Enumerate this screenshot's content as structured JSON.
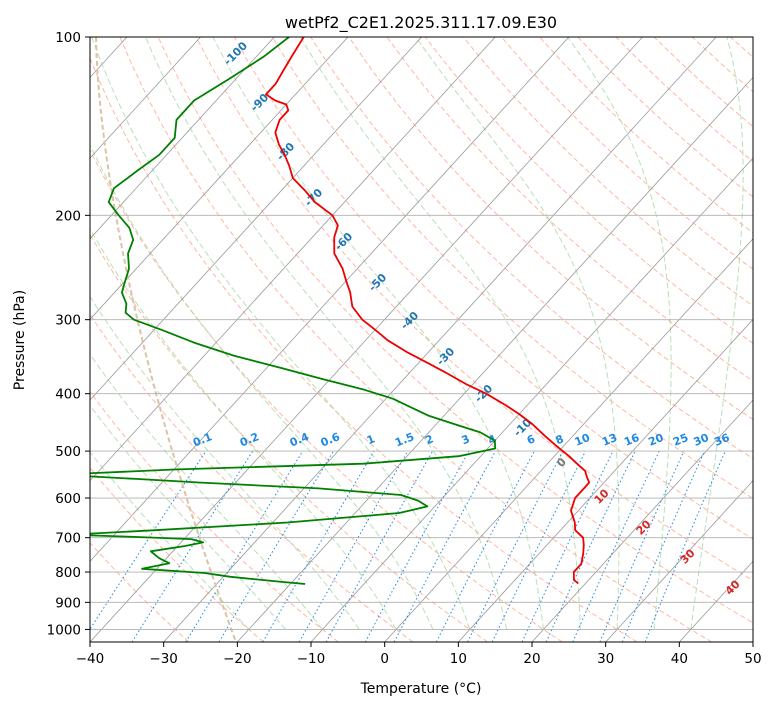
{
  "chart_data": {
    "type": "line",
    "subtype": "skew-t log-p diagram",
    "title": "wetPf2_C2E1.2025.311.17.09.E30",
    "xlabel": "Temperature (°C)",
    "ylabel": "Pressure (hPa)",
    "xlim": [
      -40,
      50
    ],
    "ylim": [
      1050,
      100
    ],
    "yscale": "log",
    "grid": true,
    "x_ticks": [
      -40,
      -30,
      -20,
      -10,
      0,
      10,
      20,
      30,
      40,
      50
    ],
    "x_tick_labels": [
      "−40",
      "−30",
      "−20",
      "−10",
      "0",
      "10",
      "20",
      "30",
      "40",
      "50"
    ],
    "y_ticks": [
      100,
      200,
      300,
      400,
      500,
      600,
      700,
      800,
      900,
      1000
    ],
    "y_tick_labels": [
      "100",
      "200",
      "300",
      "400",
      "500",
      "600",
      "700",
      "800",
      "900",
      "1000"
    ],
    "colors": {
      "temperature": "#ee0000",
      "dewpoint": "#008000",
      "isotherm_label": "#1f77b4",
      "isotherm_label_warm": "#d62728",
      "mixing_ratio": "#1e88e5",
      "dry_adiabat": "#ff9f80",
      "moist_adiabat": "#a6d8a6",
      "skewed_isotherm": "#999999",
      "horizontal_grid": "#b0b0b0",
      "lcl_curve": "#dcc3a6"
    },
    "series": [
      {
        "name": "",
        "key": "temperature",
        "points": [
          [
            -86,
            100
          ],
          [
            -85.5,
            105
          ],
          [
            -85,
            110
          ],
          [
            -84.5,
            115
          ],
          [
            -84,
            120
          ],
          [
            -84,
            125
          ],
          [
            -82,
            128
          ],
          [
            -80,
            130
          ],
          [
            -79,
            133
          ],
          [
            -79,
            138
          ],
          [
            -78,
            145
          ],
          [
            -76,
            152
          ],
          [
            -74,
            158
          ],
          [
            -72,
            165
          ],
          [
            -70,
            173
          ],
          [
            -67,
            181
          ],
          [
            -64,
            190
          ],
          [
            -60,
            200
          ],
          [
            -58,
            208
          ],
          [
            -57,
            218
          ],
          [
            -55,
            232
          ],
          [
            -52,
            246
          ],
          [
            -50,
            258
          ],
          [
            -48,
            270
          ],
          [
            -46,
            285
          ],
          [
            -43,
            300
          ],
          [
            -40,
            312
          ],
          [
            -37,
            325
          ],
          [
            -33,
            340
          ],
          [
            -29,
            354
          ],
          [
            -25,
            369
          ],
          [
            -21,
            385
          ],
          [
            -17,
            400
          ],
          [
            -13,
            418
          ],
          [
            -10,
            433
          ],
          [
            -7,
            450
          ],
          [
            -4,
            470
          ],
          [
            -1,
            490
          ],
          [
            2,
            510
          ],
          [
            4,
            525
          ],
          [
            6,
            540
          ],
          [
            7,
            553
          ],
          [
            8,
            565
          ],
          [
            8,
            575
          ],
          [
            8,
            600
          ],
          [
            9,
            630
          ],
          [
            11,
            660
          ],
          [
            12,
            680
          ],
          [
            14,
            700
          ],
          [
            15,
            720
          ],
          [
            16,
            745
          ],
          [
            17,
            775
          ],
          [
            17,
            800
          ],
          [
            18,
            825
          ],
          [
            19,
            836
          ]
        ]
      },
      {
        "name": "",
        "key": "dewpoint",
        "points": [
          [
            -88,
            100
          ],
          [
            -89,
            108
          ],
          [
            -91,
            118
          ],
          [
            -93,
            128
          ],
          [
            -93,
            138
          ],
          [
            -91,
            148
          ],
          [
            -91,
            158
          ],
          [
            -92,
            168
          ],
          [
            -93,
            180
          ],
          [
            -92,
            190
          ],
          [
            -89,
            200
          ],
          [
            -86,
            210
          ],
          [
            -84,
            220
          ],
          [
            -83,
            232
          ],
          [
            -81,
            246
          ],
          [
            -80,
            258
          ],
          [
            -79,
            270
          ],
          [
            -77,
            282
          ],
          [
            -76,
            292
          ],
          [
            -74,
            300
          ],
          [
            -69,
            312
          ],
          [
            -63,
            328
          ],
          [
            -56,
            345
          ],
          [
            -48,
            362
          ],
          [
            -41,
            378
          ],
          [
            -34,
            394
          ],
          [
            -29,
            408
          ],
          [
            -26,
            420
          ],
          [
            -22,
            436
          ],
          [
            -17,
            452
          ],
          [
            -13,
            465
          ],
          [
            -10,
            480
          ],
          [
            -9,
            495
          ],
          [
            -13,
            510
          ],
          [
            -25,
            525
          ],
          [
            -50,
            537
          ],
          [
            -65,
            548
          ],
          [
            -54,
            557
          ],
          [
            -45,
            565
          ],
          [
            -28,
            578
          ],
          [
            -16,
            593
          ],
          [
            -13,
            606
          ],
          [
            -11,
            620
          ],
          [
            -14,
            636
          ],
          [
            -28,
            660
          ],
          [
            -45,
            680
          ],
          [
            -56,
            692
          ],
          [
            -48,
            697
          ],
          [
            -39,
            704
          ],
          [
            -37,
            713
          ],
          [
            -39,
            723
          ],
          [
            -43,
            738
          ],
          [
            -41,
            758
          ],
          [
            -39,
            773
          ],
          [
            -42,
            790
          ],
          [
            -33,
            803
          ],
          [
            -29,
            815
          ],
          [
            -22,
            830
          ],
          [
            -18,
            838
          ]
        ]
      }
    ],
    "isotherm_labels": [
      "-100",
      "-90",
      "-80",
      "-70",
      "-60",
      "-50",
      "-40",
      "-30",
      "-20",
      "-10",
      "0",
      "10",
      "20",
      "30",
      "40"
    ],
    "mixing_ratio_labels": [
      "0.1",
      "0.2",
      "0.4",
      "0.6",
      "1",
      "1.5",
      "2",
      "3",
      "4",
      "6",
      "8",
      "10",
      "13",
      "16",
      "20",
      "25",
      "30",
      "36"
    ]
  }
}
